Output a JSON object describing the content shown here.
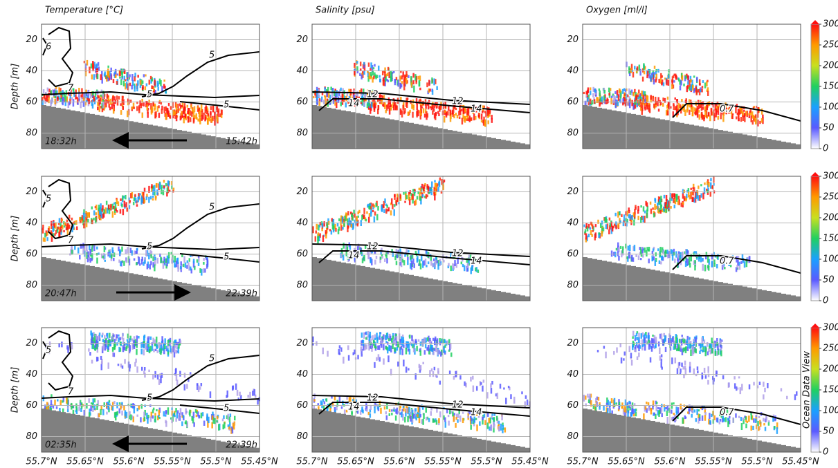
{
  "chart_data": [
    {
      "type": "echogram",
      "title": "Temperature [°C]",
      "ylabel": "Depth [m]",
      "ylim": [
        10,
        90
      ],
      "yticks": [
        20,
        40,
        60,
        80
      ],
      "xlim": [
        55.7,
        55.45
      ],
      "xticks": [
        55.7,
        55.65,
        55.6,
        55.55,
        55.5,
        55.45
      ],
      "contour_labels": [
        5,
        5,
        5,
        7,
        6
      ],
      "time_start": "18:32h",
      "time_end": "15:42h",
      "arrow": "left"
    },
    {
      "type": "echogram",
      "title": "Salinity [psu]",
      "ylim": [
        10,
        90
      ],
      "yticks": [
        20,
        40,
        60,
        80
      ],
      "xlim": [
        55.7,
        55.45
      ],
      "xticks": [
        55.7,
        55.65,
        55.6,
        55.55,
        55.5,
        55.45
      ],
      "contour_labels": [
        12,
        12,
        14,
        14
      ]
    },
    {
      "type": "echogram",
      "title": "Oxygen [ml/l]",
      "ylim": [
        10,
        90
      ],
      "yticks": [
        20,
        40,
        60,
        80
      ],
      "xlim": [
        55.7,
        55.45
      ],
      "xticks": [
        55.7,
        55.65,
        55.6,
        55.55,
        55.5,
        55.45
      ],
      "contour_labels": [
        0.7
      ]
    },
    {
      "type": "echogram",
      "ylabel": "Depth [m]",
      "ylim": [
        10,
        90
      ],
      "yticks": [
        20,
        40,
        60,
        80
      ],
      "xlim": [
        55.7,
        55.45
      ],
      "xticks": [
        55.7,
        55.65,
        55.6,
        55.55,
        55.5,
        55.45
      ],
      "contour_labels": [
        5,
        5,
        5,
        7,
        5
      ],
      "time_start": "20:47h",
      "time_end": "22:39h",
      "arrow": "right"
    },
    {
      "type": "echogram",
      "ylim": [
        10,
        90
      ],
      "yticks": [
        20,
        40,
        60,
        80
      ],
      "xlim": [
        55.7,
        55.45
      ],
      "xticks": [
        55.7,
        55.65,
        55.6,
        55.55,
        55.5,
        55.45
      ],
      "contour_labels": [
        12,
        12,
        14,
        14
      ]
    },
    {
      "type": "echogram",
      "ylim": [
        10,
        90
      ],
      "yticks": [
        20,
        40,
        60,
        80
      ],
      "xlim": [
        55.7,
        55.45
      ],
      "xticks": [
        55.7,
        55.65,
        55.6,
        55.55,
        55.5,
        55.45
      ],
      "contour_labels": [
        0.7
      ]
    },
    {
      "type": "echogram",
      "ylabel": "Depth [m]",
      "ylim": [
        10,
        90
      ],
      "yticks": [
        20,
        40,
        60,
        80
      ],
      "xlim": [
        55.7,
        55.45
      ],
      "xticks": [
        {
          "value": 55.7,
          "label": "55.7°N"
        },
        {
          "value": 55.65,
          "label": "55.65°N"
        },
        {
          "value": 55.6,
          "label": "55.6°N"
        },
        {
          "value": 55.55,
          "label": "55.55°N"
        },
        {
          "value": 55.5,
          "label": "55.5°N"
        },
        {
          "value": 55.45,
          "label": "55.45°N"
        }
      ],
      "contour_labels": [
        5,
        5,
        5,
        7,
        5
      ],
      "time_start": "02:35h",
      "time_end": "22:39h",
      "arrow": "left"
    },
    {
      "type": "echogram",
      "ylim": [
        10,
        90
      ],
      "yticks": [
        20,
        40,
        60,
        80
      ],
      "xlim": [
        55.7,
        55.45
      ],
      "xticks": [
        {
          "value": 55.7,
          "label": "55.7°N"
        },
        {
          "value": 55.65,
          "label": "55.65°N"
        },
        {
          "value": 55.6,
          "label": "55.6°N"
        },
        {
          "value": 55.55,
          "label": "55.55°N"
        },
        {
          "value": 55.5,
          "label": "55.5°N"
        },
        {
          "value": 55.45,
          "label": "55.45°N"
        }
      ],
      "contour_labels": [
        12,
        12,
        14,
        14
      ]
    },
    {
      "type": "echogram",
      "ylim": [
        10,
        90
      ],
      "yticks": [
        20,
        40,
        60,
        80
      ],
      "xlim": [
        55.7,
        55.45
      ],
      "xticks": [
        {
          "value": 55.7,
          "label": "55.7°N"
        },
        {
          "value": 55.65,
          "label": "55.65°N"
        },
        {
          "value": 55.6,
          "label": "55.6°N"
        },
        {
          "value": 55.55,
          "label": "55.55°N"
        },
        {
          "value": 55.5,
          "label": "55.5°N"
        },
        {
          "value": 55.45,
          "label": "55.45°N"
        }
      ],
      "contour_labels": [
        0.7
      ]
    },
    {
      "type": "colorbar",
      "ylim": [
        0,
        300
      ],
      "yticks": [
        0,
        50,
        100,
        150,
        200,
        250,
        300
      ],
      "colors": [
        "#ffffff",
        "#5a5aff",
        "#1aa0ff",
        "#20d060",
        "#c8e020",
        "#ff9a00",
        "#ff1010"
      ]
    },
    {
      "type": "colorbar",
      "ylim": [
        0,
        300
      ],
      "yticks": [
        0,
        50,
        100,
        150,
        200,
        250,
        300
      ],
      "colors": [
        "#ffffff",
        "#5a5aff",
        "#1aa0ff",
        "#20d060",
        "#c8e020",
        "#ff9a00",
        "#ff1010"
      ]
    },
    {
      "type": "colorbar",
      "ylim": [
        0,
        300
      ],
      "yticks": [
        0,
        50,
        100,
        150,
        200,
        250,
        300
      ],
      "colors": [
        "#ffffff",
        "#5a5aff",
        "#1aa0ff",
        "#20d060",
        "#c8e020",
        "#ff9a00",
        "#ff1010"
      ],
      "annotation": "Ocean Data View"
    }
  ]
}
